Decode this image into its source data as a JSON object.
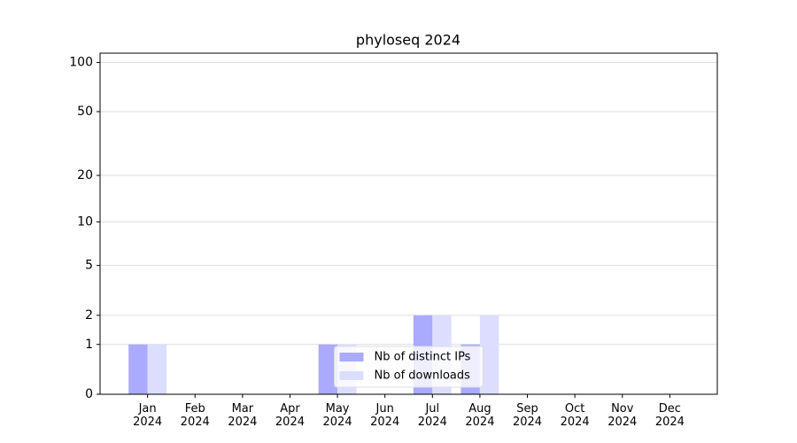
{
  "chart_data": {
    "type": "bar",
    "title": "phyloseq 2024",
    "categories": [
      "Jan 2024",
      "Feb 2024",
      "Mar 2024",
      "Apr 2024",
      "May 2024",
      "Jun 2024",
      "Jul 2024",
      "Aug 2024",
      "Sep 2024",
      "Oct 2024",
      "Nov 2024",
      "Dec 2024"
    ],
    "series": [
      {
        "name": "Nb of distinct IPs",
        "color": "#aaaaff",
        "values": [
          1,
          0,
          0,
          0,
          1,
          0,
          2,
          1,
          0,
          0,
          0,
          0
        ]
      },
      {
        "name": "Nb of downloads",
        "color": "#ddddff",
        "values": [
          1,
          0,
          0,
          0,
          1,
          0,
          2,
          2,
          0,
          0,
          0,
          0
        ]
      }
    ],
    "yscale": "log1p",
    "ylim": [
      0,
      114
    ],
    "yticks": [
      0,
      1,
      2,
      5,
      10,
      20,
      50,
      100
    ],
    "grid": true,
    "legend": "lower center"
  }
}
